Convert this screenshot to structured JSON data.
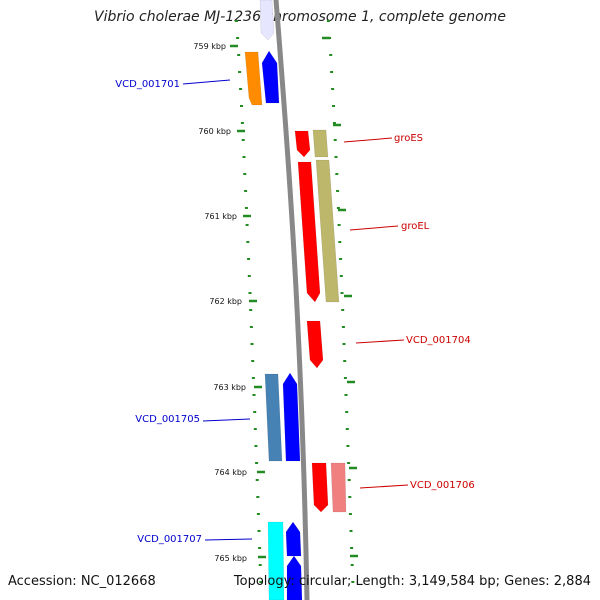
{
  "title": "Vibrio cholerae MJ-1236 chromosome 1, complete genome",
  "footer": {
    "accession": "Accession: NC_012668",
    "summary": "Topology: circular; Length: 3,149,584 bp; Genes: 2,884"
  },
  "colors": {
    "backbone": "#888888",
    "tick": "#228b22",
    "label_left": "#0000cc",
    "label_right": "#cc0000"
  },
  "ticks": [
    {
      "label": "759 kbp"
    },
    {
      "label": "760 kbp"
    },
    {
      "label": "761 kbp"
    },
    {
      "label": "762 kbp"
    },
    {
      "label": "763 kbp"
    },
    {
      "label": "764 kbp"
    },
    {
      "label": "765 kbp"
    }
  ],
  "gene_labels": [
    {
      "text": "VCD_001701",
      "side": "left"
    },
    {
      "text": "groES",
      "side": "right"
    },
    {
      "text": "groEL",
      "side": "right"
    },
    {
      "text": "VCD_001704",
      "side": "right"
    },
    {
      "text": "VCD_001705",
      "side": "left"
    },
    {
      "text": "VCD_001706",
      "side": "right"
    },
    {
      "text": "VCD_001707",
      "side": "left"
    }
  ],
  "genes": [
    {
      "color": "#e6e6ff",
      "strand": "minus",
      "track": "inner-left"
    },
    {
      "color": "#ff8c00",
      "strand": "plus",
      "track": "outer-left"
    },
    {
      "color": "#0000ff",
      "strand": "plus",
      "track": "inner-left"
    },
    {
      "color": "#ff0000",
      "strand": "minus",
      "track": "inner-right"
    },
    {
      "color": "#bdb76b",
      "strand": "plus",
      "track": "outer-right"
    },
    {
      "color": "#ff0000",
      "strand": "minus",
      "track": "inner-right"
    },
    {
      "color": "#bdb76b",
      "strand": "plus",
      "track": "outer-right"
    },
    {
      "color": "#ff0000",
      "strand": "minus",
      "track": "inner-right"
    },
    {
      "color": "#4682b4",
      "strand": "plus",
      "track": "outer-left"
    },
    {
      "color": "#0000ff",
      "strand": "plus",
      "track": "inner-left"
    },
    {
      "color": "#ff0000",
      "strand": "minus",
      "track": "inner-right"
    },
    {
      "color": "#f08080",
      "strand": "minus",
      "track": "outer-right"
    },
    {
      "color": "#00ffff",
      "strand": "plus",
      "track": "outer-left"
    },
    {
      "color": "#0000ff",
      "strand": "plus",
      "track": "inner-left"
    }
  ]
}
